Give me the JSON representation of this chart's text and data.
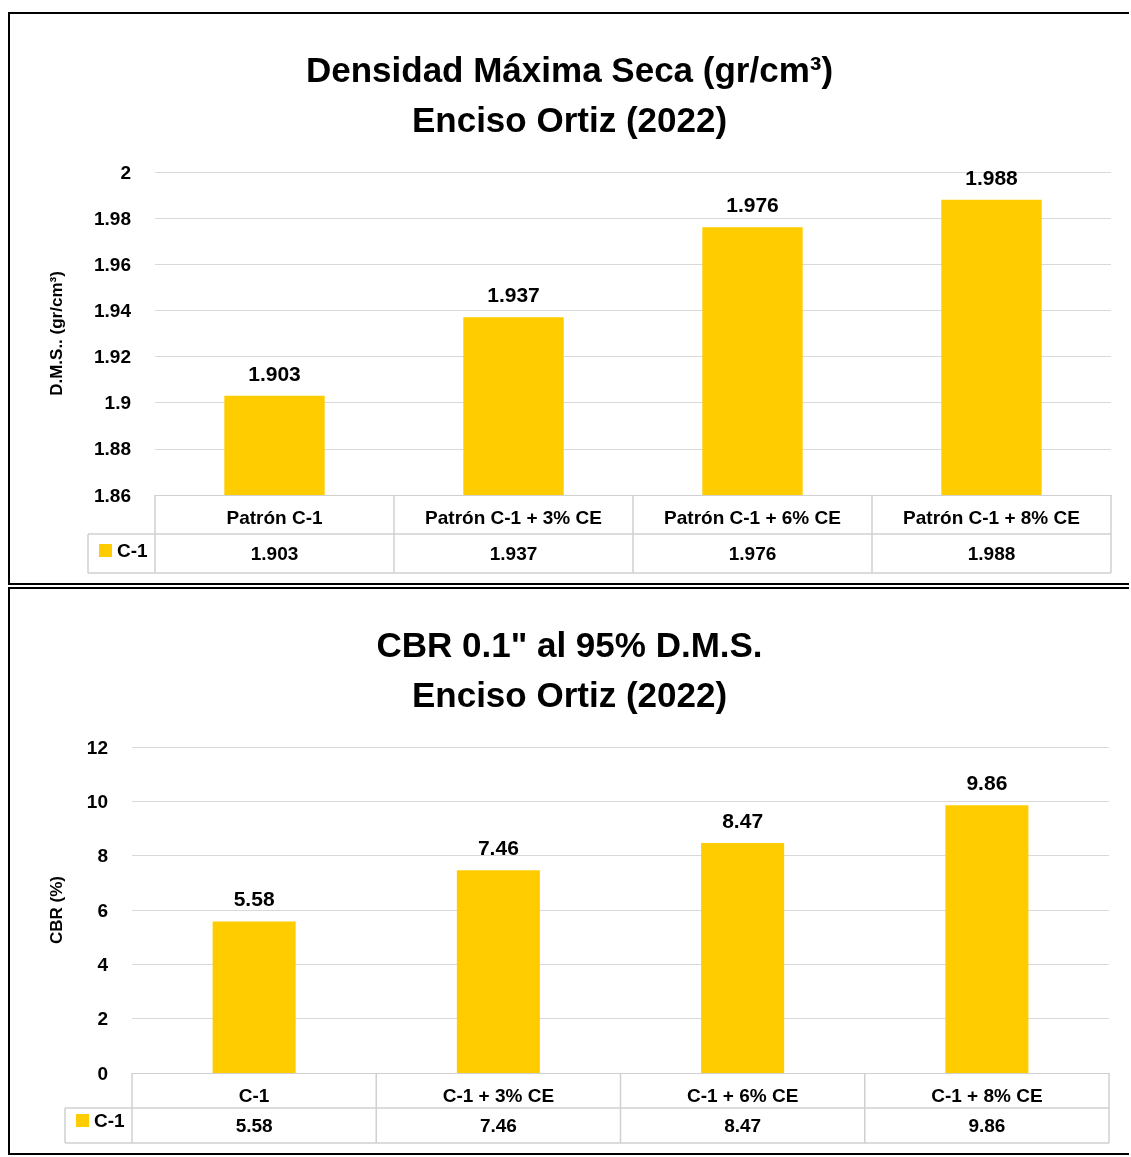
{
  "chart_data": [
    {
      "type": "bar",
      "title": "Densidad Máxima Seca (gr/cm³)\nEnciso Ortiz (2022)",
      "ylabel": "D.M.S.. (gr/cm³)",
      "categories": [
        "Patrón C-1",
        "Patrón C-1 + 3% CE",
        "Patrón C-1 + 6% CE",
        "Patrón C-1 + 8% CE"
      ],
      "series": [
        {
          "name": "C-1",
          "color": "#ffcc00",
          "values": [
            1.903,
            1.937,
            1.976,
            1.988
          ]
        }
      ],
      "annotations": [
        "1.903",
        "1.937",
        "1.976",
        "1.988"
      ],
      "ylim": [
        1.86,
        2
      ],
      "yticks": [
        1.86,
        1.88,
        1.9,
        1.92,
        1.94,
        1.96,
        1.98,
        2
      ],
      "grid": "y",
      "legend": "bottom left",
      "data_labels": true
    },
    {
      "type": "bar",
      "title": "CBR 0.1\" al 95% D.M.S.\nEnciso Ortiz (2022)",
      "ylabel": "CBR (%)",
      "categories": [
        "C-1",
        "C-1 + 3% CE",
        "C-1 + 6% CE",
        "C-1 + 8% CE"
      ],
      "series": [
        {
          "name": "C-1",
          "color": "#ffcc00",
          "values": [
            5.58,
            7.46,
            8.47,
            9.86
          ]
        }
      ],
      "annotations": [
        "5.58",
        "7.46",
        "8.47",
        "9.86"
      ],
      "ylim": [
        0,
        12
      ],
      "yticks": [
        0,
        2,
        4,
        6,
        8,
        10,
        12
      ],
      "grid": "y",
      "legend": "bottom left",
      "data_labels": true
    }
  ]
}
